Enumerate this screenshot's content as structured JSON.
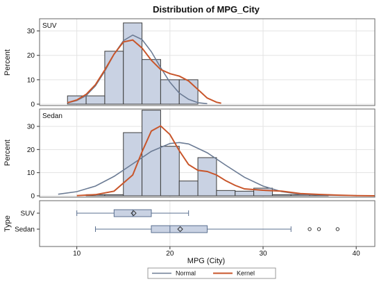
{
  "chart_data": {
    "type": "histogram",
    "title": "Distribution of MPG_City",
    "xlabel": "MPG (City)",
    "xlim": [
      6,
      42
    ],
    "xticks": [
      "10",
      "20",
      "30",
      "40"
    ],
    "xtick_values": [
      10,
      20,
      30,
      40
    ],
    "grid": true,
    "colors": {
      "bar_fill": "#c9d2e3",
      "bar_stroke": "#3b3b3b",
      "normal": "#6b7b94",
      "kernel": "#c8552a",
      "grid": "#e3e3e3"
    },
    "histograms": [
      {
        "name": "SUV",
        "ylabel": "Percent",
        "ylim": [
          0,
          35
        ],
        "yticks": [
          "0",
          "10",
          "20",
          "30"
        ],
        "ytick_values": [
          0,
          10,
          20,
          30
        ],
        "bins": [
          {
            "start": 9,
            "end": 11,
            "value": 3.4
          },
          {
            "start": 11,
            "end": 13,
            "value": 3.4
          },
          {
            "start": 13,
            "end": 15,
            "value": 21.7
          },
          {
            "start": 15,
            "end": 17,
            "value": 33.3
          },
          {
            "start": 17,
            "end": 19,
            "value": 18.3
          },
          {
            "start": 19,
            "end": 21,
            "value": 10.0
          },
          {
            "start": 21,
            "end": 23,
            "value": 10.0
          }
        ],
        "normal_curve": [
          [
            9,
            0.5
          ],
          [
            10,
            1.5
          ],
          [
            11,
            3.5
          ],
          [
            12,
            7.5
          ],
          [
            13,
            13.5
          ],
          [
            14,
            20.5
          ],
          [
            15,
            26
          ],
          [
            16,
            28.3
          ],
          [
            17,
            26.5
          ],
          [
            18,
            21.5
          ],
          [
            19,
            15
          ],
          [
            20,
            9
          ],
          [
            21,
            4.5
          ],
          [
            22,
            2
          ],
          [
            23,
            0.6
          ],
          [
            24,
            0.2
          ]
        ],
        "kernel_curve": [
          [
            9,
            0.6
          ],
          [
            10,
            1.7
          ],
          [
            11,
            4
          ],
          [
            12,
            8
          ],
          [
            13,
            14
          ],
          [
            14,
            20.5
          ],
          [
            15,
            25.5
          ],
          [
            16,
            26.3
          ],
          [
            17,
            23
          ],
          [
            18,
            18
          ],
          [
            19,
            14.2
          ],
          [
            20,
            12.5
          ],
          [
            21,
            11.5
          ],
          [
            22,
            9.5
          ],
          [
            23,
            6
          ],
          [
            24,
            2.5
          ],
          [
            25,
            0.8
          ],
          [
            25.5,
            0.4
          ]
        ]
      },
      {
        "name": "Sedan",
        "ylabel": "Percent",
        "ylim": [
          0,
          37.5
        ],
        "yticks": [
          "0",
          "10",
          "20",
          "30"
        ],
        "ytick_values": [
          0,
          10,
          20,
          30
        ],
        "bins": [
          {
            "start": 11,
            "end": 13,
            "value": 0.5
          },
          {
            "start": 13,
            "end": 15,
            "value": 0.5
          },
          {
            "start": 15,
            "end": 17,
            "value": 27.3
          },
          {
            "start": 17,
            "end": 19,
            "value": 37.0
          },
          {
            "start": 19,
            "end": 21,
            "value": 21.4
          },
          {
            "start": 21,
            "end": 23,
            "value": 6.4
          },
          {
            "start": 23,
            "end": 25,
            "value": 16.5
          },
          {
            "start": 25,
            "end": 27,
            "value": 2.3
          },
          {
            "start": 27,
            "end": 29,
            "value": 2.0
          },
          {
            "start": 29,
            "end": 31,
            "value": 3.3
          },
          {
            "start": 31,
            "end": 33,
            "value": 0.5
          },
          {
            "start": 33,
            "end": 35,
            "value": 0.5
          },
          {
            "start": 35,
            "end": 37,
            "value": 0.5
          }
        ],
        "bins_note": "",
        "normal_curve": [
          [
            8,
            0.7
          ],
          [
            10,
            1.8
          ],
          [
            12,
            4.2
          ],
          [
            14,
            8.4
          ],
          [
            16,
            13.8
          ],
          [
            18,
            19.2
          ],
          [
            20,
            22.6
          ],
          [
            21,
            23
          ],
          [
            22,
            22.4
          ],
          [
            24,
            18.6
          ],
          [
            26,
            13.2
          ],
          [
            28,
            8
          ],
          [
            30,
            4.2
          ],
          [
            32,
            1.8
          ],
          [
            34,
            0.7
          ],
          [
            36,
            0.3
          ],
          [
            40,
            0.1
          ]
        ],
        "kernel_curve": [
          [
            10,
            0.1
          ],
          [
            12,
            0.5
          ],
          [
            14,
            2
          ],
          [
            16,
            9
          ],
          [
            17,
            19
          ],
          [
            18,
            28
          ],
          [
            19,
            30.2
          ],
          [
            20,
            26.5
          ],
          [
            21,
            19.5
          ],
          [
            22,
            13.5
          ],
          [
            23,
            11
          ],
          [
            24,
            10.5
          ],
          [
            25,
            9
          ],
          [
            26,
            6.5
          ],
          [
            27,
            4.5
          ],
          [
            28,
            3
          ],
          [
            30,
            2.4
          ],
          [
            32,
            2
          ],
          [
            34,
            1
          ],
          [
            36,
            0.6
          ],
          [
            38,
            0.3
          ],
          [
            40,
            0.1
          ],
          [
            42,
            0
          ]
        ]
      }
    ],
    "boxplot": {
      "ylabel": "Type",
      "groups": [
        {
          "name": "SUV",
          "min": 10,
          "q1": 14,
          "median": 16,
          "mean": 16.1,
          "q3": 18,
          "max": 22,
          "outliers": []
        },
        {
          "name": "Sedan",
          "min": 12,
          "q1": 18,
          "median": 20,
          "mean": 21.1,
          "q3": 24,
          "max": 33,
          "outliers": [
            35,
            36,
            38
          ]
        }
      ]
    },
    "legend": {
      "placement": "bottom",
      "items": [
        {
          "label": "Normal",
          "color": "#6b7b94"
        },
        {
          "label": "Kernel",
          "color": "#c8552a"
        }
      ]
    }
  }
}
